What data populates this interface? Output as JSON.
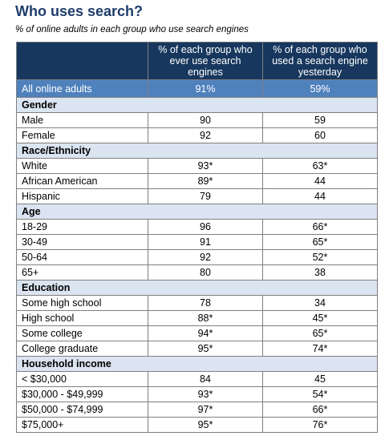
{
  "title": "Who uses search?",
  "subtitle": "% of online adults in each group who use search engines",
  "table": {
    "columns": [
      "",
      "% of each group who ever use search engines",
      "% of each group who used a search engine yesterday"
    ],
    "overall": {
      "label": "All online adults",
      "ever": "91%",
      "yesterday": "59%"
    },
    "sections": [
      {
        "name": "Gender",
        "rows": [
          {
            "label": "Male",
            "ever": "90",
            "yesterday": "59"
          },
          {
            "label": "Female",
            "ever": "92",
            "yesterday": "60"
          }
        ]
      },
      {
        "name": "Race/Ethnicity",
        "rows": [
          {
            "label": "White",
            "ever": "93*",
            "yesterday": "63*"
          },
          {
            "label": "African American",
            "ever": "89*",
            "yesterday": "44"
          },
          {
            "label": "Hispanic",
            "ever": "79",
            "yesterday": "44"
          }
        ]
      },
      {
        "name": "Age",
        "rows": [
          {
            "label": "18-29",
            "ever": "96",
            "yesterday": "66*"
          },
          {
            "label": "30-49",
            "ever": "91",
            "yesterday": "65*"
          },
          {
            "label": "50-64",
            "ever": "92",
            "yesterday": "52*"
          },
          {
            "label": "65+",
            "ever": "80",
            "yesterday": "38"
          }
        ]
      },
      {
        "name": "Education",
        "rows": [
          {
            "label": "Some high school",
            "ever": "78",
            "yesterday": "34"
          },
          {
            "label": "High school",
            "ever": "88*",
            "yesterday": "45*"
          },
          {
            "label": "Some college",
            "ever": "94*",
            "yesterday": "65*"
          },
          {
            "label": "College graduate",
            "ever": "95*",
            "yesterday": "74*"
          }
        ]
      },
      {
        "name": "Household income",
        "rows": [
          {
            "label": "< $30,000",
            "ever": "84",
            "yesterday": "45"
          },
          {
            "label": "$30,000 - $49,999",
            "ever": "93*",
            "yesterday": "54*"
          },
          {
            "label": "$50,000 - $74,999",
            "ever": "97*",
            "yesterday": "66*"
          },
          {
            "label": "$75,000+",
            "ever": "95*",
            "yesterday": "76*"
          }
        ]
      }
    ]
  }
}
